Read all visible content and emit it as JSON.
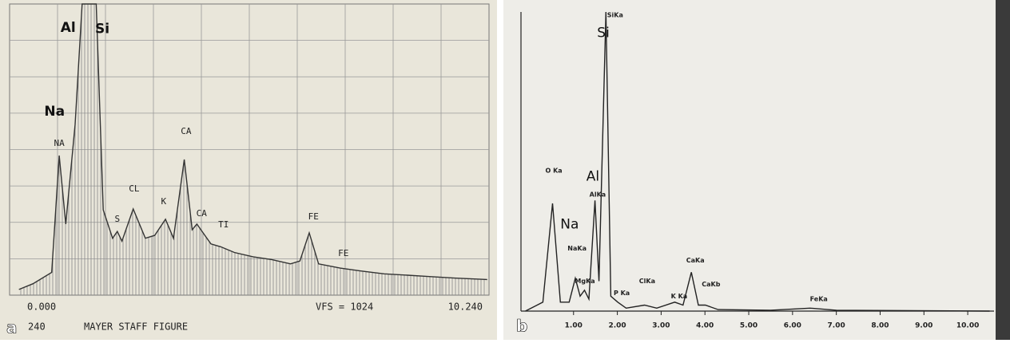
{
  "chart_data": [
    {
      "type": "line",
      "panel_label": "a",
      "x": [
        0.2,
        0.5,
        0.9,
        1.06,
        1.2,
        1.4,
        1.55,
        1.65,
        1.74,
        1.85,
        2.0,
        2.2,
        2.3,
        2.4,
        2.64,
        2.9,
        3.1,
        3.33,
        3.5,
        3.73,
        3.9,
        4.0,
        4.3,
        4.51,
        4.8,
        5.2,
        5.6,
        6.0,
        6.2,
        6.4,
        6.6,
        7.06,
        7.5,
        8.0,
        8.5,
        9.0,
        9.5,
        10.2
      ],
      "values": [
        20,
        40,
        80,
        491,
        250,
        600,
        1024,
        1024,
        1024,
        1024,
        300,
        200,
        224,
        190,
        303,
        200,
        210,
        267,
        200,
        477,
        230,
        250,
        180,
        170,
        150,
        135,
        125,
        110,
        120,
        219,
        110,
        95,
        85,
        75,
        70,
        65,
        60,
        55
      ],
      "color": "#333333",
      "grid": true,
      "xlim": [
        0,
        10.24
      ],
      "ylim": [
        0,
        1024
      ],
      "xticks": [
        {
          "value": 0,
          "label": "0.000"
        },
        {
          "value": 10.24,
          "label": "10.240"
        }
      ],
      "element_labels": [
        {
          "text": "Al",
          "x": 1.25,
          "y": 940
        },
        {
          "text": "Si",
          "x": 1.98,
          "y": 935
        },
        {
          "text": "Na",
          "x": 0.96,
          "y": 645
        }
      ],
      "peak_labels": [
        {
          "text": "NA",
          "x": 1.06,
          "y": 533
        },
        {
          "text": "CA",
          "x": 3.77,
          "y": 575
        },
        {
          "text": "CL",
          "x": 2.66,
          "y": 373
        },
        {
          "text": "K",
          "x": 3.29,
          "y": 328
        },
        {
          "text": "S",
          "x": 2.3,
          "y": 266
        },
        {
          "text": "CA",
          "x": 4.1,
          "y": 286
        },
        {
          "text": "TI",
          "x": 4.57,
          "y": 247
        },
        {
          "text": "FE",
          "x": 6.49,
          "y": 275
        },
        {
          "text": "FE",
          "x": 7.13,
          "y": 146
        }
      ],
      "texts": [
        "VFS = 1024",
        "240",
        "MAYER STAFF FIGURE"
      ]
    },
    {
      "type": "line",
      "panel_label": "b",
      "x": [
        -0.1,
        0.3,
        0.52,
        0.7,
        0.9,
        1.04,
        1.15,
        1.25,
        1.35,
        1.49,
        1.58,
        1.74,
        1.85,
        2.01,
        2.2,
        2.62,
        2.9,
        3.31,
        3.5,
        3.69,
        3.85,
        4.01,
        4.3,
        5.5,
        6.4,
        7.0,
        10.5
      ],
      "values": [
        0,
        3,
        36,
        3,
        3,
        11,
        5,
        7,
        4,
        37,
        10,
        100,
        5,
        3,
        1,
        2,
        1,
        3,
        2,
        13,
        2,
        2,
        0.5,
        0.3,
        1,
        0.3,
        0
      ],
      "color": "#222222",
      "grid": false,
      "xlim": [
        -0.2,
        10.6
      ],
      "ylim": [
        0,
        100
      ],
      "xticks": [
        {
          "value": 1,
          "label": "1.00"
        },
        {
          "value": 2,
          "label": "2.00"
        },
        {
          "value": 3,
          "label": "3.00"
        },
        {
          "value": 4,
          "label": "4.00"
        },
        {
          "value": 5,
          "label": "5.00"
        },
        {
          "value": 6,
          "label": "6.00"
        },
        {
          "value": 7,
          "label": "7.00"
        },
        {
          "value": 8,
          "label": "8.00"
        },
        {
          "value": 9,
          "label": "9.00"
        },
        {
          "value": 10,
          "label": "10.00"
        }
      ],
      "element_labels": [
        {
          "text": "Si",
          "x": 1.68,
          "y": 93
        },
        {
          "text": "Al",
          "x": 1.44,
          "y": 45
        },
        {
          "text": "Na",
          "x": 0.91,
          "y": 29
        }
      ],
      "peak_labels": [
        {
          "text": "SiKa",
          "x": 1.95,
          "y": 99
        },
        {
          "text": "AlKa",
          "x": 1.55,
          "y": 39
        },
        {
          "text": "NaKa",
          "x": 1.08,
          "y": 21
        },
        {
          "text": "MgKa",
          "x": 1.26,
          "y": 10
        },
        {
          "text": "O Ka",
          "x": 0.55,
          "y": 47
        },
        {
          "text": "P Ka",
          "x": 2.1,
          "y": 6
        },
        {
          "text": "ClKa",
          "x": 2.68,
          "y": 10
        },
        {
          "text": "K Ka",
          "x": 3.41,
          "y": 5
        },
        {
          "text": "CaKa",
          "x": 3.78,
          "y": 17
        },
        {
          "text": "CaKb",
          "x": 4.14,
          "y": 9
        },
        {
          "text": "FeKa",
          "x": 6.6,
          "y": 4
        }
      ],
      "texts": []
    }
  ]
}
